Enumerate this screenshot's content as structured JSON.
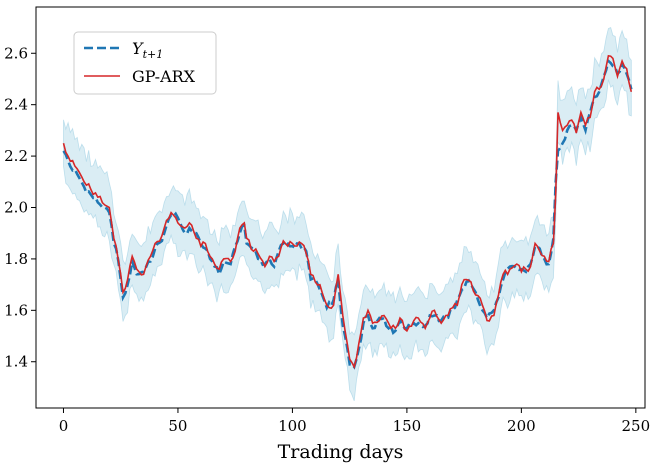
{
  "chart_data": {
    "type": "line",
    "title": "",
    "xlabel": "Trading days",
    "ylabel": "",
    "xlim": [
      -12,
      254
    ],
    "ylim": [
      1.22,
      2.78
    ],
    "xticks": [
      0,
      50,
      100,
      150,
      200,
      250
    ],
    "yticks": [
      1.4,
      1.6,
      1.8,
      2.0,
      2.2,
      2.4,
      2.6
    ],
    "xtick_labels": [
      "0",
      "50",
      "100",
      "150",
      "200",
      "250"
    ],
    "ytick_labels": [
      "1.4",
      "1.6",
      "1.8",
      "2.0",
      "2.2",
      "2.4",
      "2.6"
    ],
    "legend": {
      "position": "top-left",
      "entries": [
        {
          "label": "Y",
          "subscript": "t+1",
          "style": "dashed",
          "color": "#1f77b4"
        },
        {
          "label": "GP-ARX",
          "style": "solid",
          "color": "#d62728"
        }
      ]
    },
    "band": {
      "name": "confidence interval",
      "half_width": 0.11,
      "color": "#add8e6"
    },
    "colors": {
      "actual": "#1f77b4",
      "predicted": "#d62728",
      "band_fill": "#add8e6",
      "band_edge": "#9ccfe3"
    },
    "anchors_actual": [
      [
        0,
        2.22
      ],
      [
        3,
        2.16
      ],
      [
        6,
        2.13
      ],
      [
        9,
        2.08
      ],
      [
        12,
        2.05
      ],
      [
        15,
        2.02
      ],
      [
        18,
        2.0
      ],
      [
        20,
        1.98
      ],
      [
        22,
        1.86
      ],
      [
        23,
        1.84
      ],
      [
        25,
        1.72
      ],
      [
        26,
        1.65
      ],
      [
        28,
        1.7
      ],
      [
        30,
        1.79
      ],
      [
        32,
        1.74
      ],
      [
        35,
        1.75
      ],
      [
        38,
        1.79
      ],
      [
        40,
        1.84
      ],
      [
        43,
        1.87
      ],
      [
        45,
        1.93
      ],
      [
        47,
        1.97
      ],
      [
        50,
        1.96
      ],
      [
        53,
        1.9
      ],
      [
        55,
        1.92
      ],
      [
        58,
        1.9
      ],
      [
        60,
        1.86
      ],
      [
        62,
        1.84
      ],
      [
        64,
        1.8
      ],
      [
        66,
        1.77
      ],
      [
        68,
        1.74
      ],
      [
        70,
        1.79
      ],
      [
        73,
        1.78
      ],
      [
        75,
        1.85
      ],
      [
        77,
        1.9
      ],
      [
        79,
        1.93
      ],
      [
        80,
        1.86
      ],
      [
        83,
        1.84
      ],
      [
        85,
        1.8
      ],
      [
        88,
        1.78
      ],
      [
        90,
        1.8
      ],
      [
        92,
        1.77
      ],
      [
        94,
        1.83
      ],
      [
        96,
        1.86
      ],
      [
        98,
        1.86
      ],
      [
        100,
        1.85
      ],
      [
        102,
        1.86
      ],
      [
        104,
        1.84
      ],
      [
        106,
        1.83
      ],
      [
        108,
        1.72
      ],
      [
        110,
        1.72
      ],
      [
        112,
        1.68
      ],
      [
        115,
        1.61
      ],
      [
        118,
        1.64
      ],
      [
        120,
        1.72
      ],
      [
        122,
        1.54
      ],
      [
        123,
        1.5
      ],
      [
        125,
        1.39
      ],
      [
        127,
        1.38
      ],
      [
        129,
        1.45
      ],
      [
        131,
        1.55
      ],
      [
        133,
        1.58
      ],
      [
        135,
        1.53
      ],
      [
        138,
        1.57
      ],
      [
        140,
        1.57
      ],
      [
        142,
        1.53
      ],
      [
        145,
        1.52
      ],
      [
        147,
        1.56
      ],
      [
        150,
        1.53
      ],
      [
        153,
        1.55
      ],
      [
        155,
        1.55
      ],
      [
        158,
        1.54
      ],
      [
        160,
        1.58
      ],
      [
        162,
        1.58
      ],
      [
        165,
        1.56
      ],
      [
        167,
        1.57
      ],
      [
        170,
        1.6
      ],
      [
        172,
        1.64
      ],
      [
        174,
        1.68
      ],
      [
        176,
        1.71
      ],
      [
        178,
        1.7
      ],
      [
        180,
        1.67
      ],
      [
        183,
        1.6
      ],
      [
        185,
        1.57
      ],
      [
        188,
        1.6
      ],
      [
        190,
        1.65
      ],
      [
        192,
        1.72
      ],
      [
        195,
        1.77
      ],
      [
        198,
        1.76
      ],
      [
        200,
        1.76
      ],
      [
        202,
        1.75
      ],
      [
        204,
        1.78
      ],
      [
        206,
        1.85
      ],
      [
        208,
        1.84
      ],
      [
        210,
        1.8
      ],
      [
        212,
        1.78
      ],
      [
        214,
        1.88
      ],
      [
        215,
        2.1
      ],
      [
        216,
        2.22
      ],
      [
        218,
        2.25
      ],
      [
        220,
        2.3
      ],
      [
        222,
        2.32
      ],
      [
        224,
        2.3
      ],
      [
        226,
        2.35
      ],
      [
        228,
        2.3
      ],
      [
        230,
        2.37
      ],
      [
        232,
        2.43
      ],
      [
        234,
        2.45
      ],
      [
        236,
        2.51
      ],
      [
        238,
        2.57
      ],
      [
        240,
        2.55
      ],
      [
        242,
        2.52
      ],
      [
        244,
        2.56
      ],
      [
        246,
        2.52
      ],
      [
        248,
        2.46
      ]
    ],
    "anchors_predicted": [
      [
        0,
        2.25
      ],
      [
        3,
        2.18
      ],
      [
        6,
        2.15
      ],
      [
        9,
        2.1
      ],
      [
        12,
        2.07
      ],
      [
        15,
        2.04
      ],
      [
        18,
        2.01
      ],
      [
        20,
        2.0
      ],
      [
        22,
        1.88
      ],
      [
        23,
        1.85
      ],
      [
        25,
        1.74
      ],
      [
        26,
        1.67
      ],
      [
        28,
        1.72
      ],
      [
        30,
        1.81
      ],
      [
        32,
        1.76
      ],
      [
        35,
        1.74
      ],
      [
        38,
        1.81
      ],
      [
        40,
        1.86
      ],
      [
        43,
        1.89
      ],
      [
        45,
        1.95
      ],
      [
        47,
        1.98
      ],
      [
        50,
        1.94
      ],
      [
        53,
        1.92
      ],
      [
        55,
        1.94
      ],
      [
        58,
        1.88
      ],
      [
        60,
        1.85
      ],
      [
        62,
        1.86
      ],
      [
        64,
        1.81
      ],
      [
        66,
        1.78
      ],
      [
        68,
        1.76
      ],
      [
        70,
        1.8
      ],
      [
        73,
        1.79
      ],
      [
        75,
        1.83
      ],
      [
        77,
        1.92
      ],
      [
        79,
        1.94
      ],
      [
        80,
        1.88
      ],
      [
        83,
        1.83
      ],
      [
        85,
        1.82
      ],
      [
        88,
        1.77
      ],
      [
        90,
        1.81
      ],
      [
        92,
        1.79
      ],
      [
        94,
        1.81
      ],
      [
        96,
        1.87
      ],
      [
        98,
        1.85
      ],
      [
        100,
        1.86
      ],
      [
        102,
        1.85
      ],
      [
        104,
        1.86
      ],
      [
        106,
        1.82
      ],
      [
        108,
        1.74
      ],
      [
        110,
        1.71
      ],
      [
        112,
        1.7
      ],
      [
        115,
        1.62
      ],
      [
        118,
        1.62
      ],
      [
        120,
        1.74
      ],
      [
        122,
        1.58
      ],
      [
        123,
        1.52
      ],
      [
        125,
        1.41
      ],
      [
        127,
        1.38
      ],
      [
        129,
        1.47
      ],
      [
        131,
        1.57
      ],
      [
        133,
        1.6
      ],
      [
        135,
        1.55
      ],
      [
        138,
        1.56
      ],
      [
        140,
        1.58
      ],
      [
        142,
        1.55
      ],
      [
        145,
        1.53
      ],
      [
        147,
        1.57
      ],
      [
        150,
        1.52
      ],
      [
        153,
        1.56
      ],
      [
        155,
        1.57
      ],
      [
        158,
        1.53
      ],
      [
        160,
        1.57
      ],
      [
        162,
        1.6
      ],
      [
        165,
        1.55
      ],
      [
        167,
        1.58
      ],
      [
        170,
        1.61
      ],
      [
        172,
        1.62
      ],
      [
        174,
        1.7
      ],
      [
        176,
        1.72
      ],
      [
        178,
        1.71
      ],
      [
        180,
        1.66
      ],
      [
        183,
        1.62
      ],
      [
        185,
        1.56
      ],
      [
        188,
        1.58
      ],
      [
        190,
        1.66
      ],
      [
        192,
        1.74
      ],
      [
        195,
        1.76
      ],
      [
        198,
        1.78
      ],
      [
        200,
        1.75
      ],
      [
        202,
        1.76
      ],
      [
        204,
        1.77
      ],
      [
        206,
        1.86
      ],
      [
        208,
        1.83
      ],
      [
        210,
        1.81
      ],
      [
        212,
        1.79
      ],
      [
        214,
        1.86
      ],
      [
        215,
        2.05
      ],
      [
        216,
        2.37
      ],
      [
        218,
        2.3
      ],
      [
        220,
        2.32
      ],
      [
        222,
        2.34
      ],
      [
        224,
        2.29
      ],
      [
        226,
        2.37
      ],
      [
        228,
        2.32
      ],
      [
        230,
        2.35
      ],
      [
        232,
        2.45
      ],
      [
        234,
        2.46
      ],
      [
        236,
        2.5
      ],
      [
        238,
        2.59
      ],
      [
        240,
        2.58
      ],
      [
        242,
        2.51
      ],
      [
        244,
        2.57
      ],
      [
        246,
        2.54
      ],
      [
        248,
        2.45
      ]
    ]
  }
}
